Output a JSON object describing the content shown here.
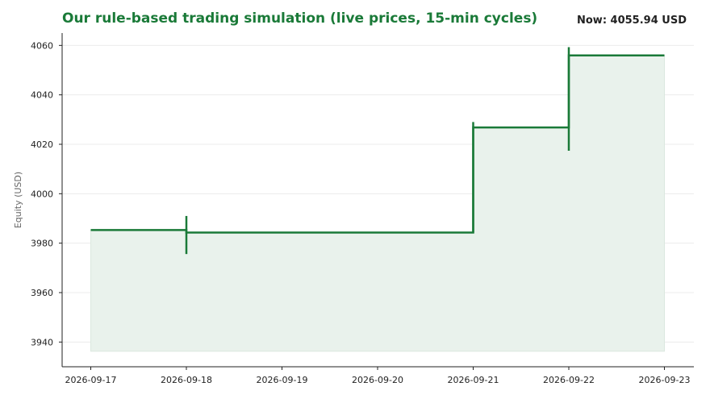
{
  "header": {
    "title": "Our rule-based trading simulation (live prices, 15-min cycles)",
    "now_label": "Now: 4055.94 USD"
  },
  "colors": {
    "line": "#1a7a38",
    "fill": "#e9f2ec",
    "grid": "#ececec",
    "axis": "#222222"
  },
  "chart_data": {
    "type": "line",
    "step": "post",
    "title": "Our rule-based trading simulation (live prices, 15-min cycles)",
    "xlabel": "",
    "ylabel": "Equity (USD)",
    "xlim": [
      "2026-09-17",
      "2026-09-23"
    ],
    "ylim": [
      3930,
      4065
    ],
    "yticks": [
      3940,
      3960,
      3980,
      4000,
      4020,
      4040,
      4060
    ],
    "xticks": [
      "2026-09-17",
      "2026-09-18",
      "2026-09-19",
      "2026-09-20",
      "2026-09-21",
      "2026-09-22",
      "2026-09-23"
    ],
    "fill_baseline": 3936.3,
    "grid": "horizontal",
    "series": [
      {
        "x": [
          "2026-09-17",
          "2026-09-18",
          "2026-09-21",
          "2026-09-22",
          "2026-09-23"
        ],
        "values": [
          3985.3,
          3984.3,
          4026.8,
          4055.94,
          4055.94
        ]
      }
    ],
    "spikes": [
      {
        "x": "2026-09-18",
        "low": 3975.6,
        "high": 3991.0
      },
      {
        "x": "2026-09-21",
        "low": 3984.3,
        "high": 4029.0
      },
      {
        "x": "2026-09-22",
        "low": 4017.4,
        "high": 4059.3
      }
    ]
  }
}
